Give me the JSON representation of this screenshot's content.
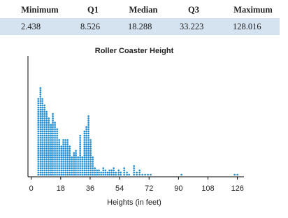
{
  "summary_table": {
    "headers": [
      "Minimum",
      "Q1",
      "Median",
      "Q3",
      "Maximum"
    ],
    "rows": [
      [
        "2.438",
        "8.526",
        "18.288",
        "33.223",
        "128.016"
      ]
    ]
  },
  "chart_data": {
    "type": "dotplot",
    "title": "Roller Coaster Height",
    "x_label": "Heights (in feet)",
    "color": "#1a8bd0",
    "x": [
      4.3,
      5.6,
      6.8,
      8.1,
      9.4,
      10.7,
      12.0,
      13.2,
      14.5,
      15.8,
      17.1,
      18.4,
      19.6,
      20.9,
      22.2,
      23.5,
      24.8,
      26.1,
      27.3,
      28.6,
      29.9,
      31.2,
      32.5,
      33.7,
      35.0,
      36.3,
      37.6,
      38.9,
      40.2,
      41.4,
      42.7,
      44.0,
      45.3,
      46.6,
      47.8,
      49.1,
      50.4,
      51.7,
      53.4,
      54.7,
      56.8,
      58.5,
      59.8,
      62.8,
      64.5,
      66.2,
      67.9,
      69.6,
      71.3,
      73.0,
      91.8,
      124.3,
      126.0
    ],
    "values": [
      36,
      41,
      36,
      33,
      30,
      27,
      24,
      29,
      25,
      22,
      17,
      14,
      17,
      17,
      17,
      14,
      9,
      11,
      12,
      9,
      19,
      9,
      21,
      23,
      28,
      17,
      9,
      4,
      3,
      3,
      2,
      4,
      3,
      2,
      3,
      3,
      4,
      2,
      3,
      2,
      4,
      2,
      1,
      5,
      2,
      3,
      1,
      1,
      1,
      1,
      1,
      1,
      1
    ],
    "xlim": [
      -2,
      130
    ],
    "xticks": [
      0,
      18,
      36,
      54,
      72,
      90,
      108,
      126
    ]
  }
}
